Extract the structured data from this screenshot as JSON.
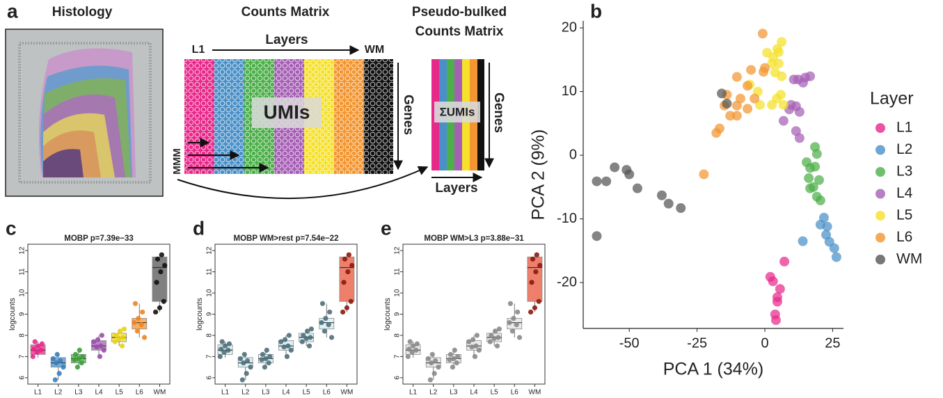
{
  "diagram": {
    "panel_label": "a",
    "histology_title": "Histology",
    "counts_title": "Counts Matrix",
    "layers_top": "Layers",
    "first_layer": "L1",
    "last_layer": "WM",
    "umis": "UMIs",
    "genes_left": "Genes",
    "barcodes": "MMM",
    "pseudo_title_1": "Pseudo-bulked",
    "pseudo_title_2": "Counts Matrix",
    "sum_umis": "ΣUMIs",
    "genes_right": "Genes",
    "layers_bottom": "Layers"
  },
  "chart_data": [
    {
      "type": "scatter",
      "panel_label": "b",
      "xlabel": "PCA 1 (34%)",
      "ylabel": "PCA 2 (9%)",
      "legend_title": "Layer",
      "legend": "right",
      "xlim": [
        -67,
        29
      ],
      "ylim": [
        -27.2,
        21.1
      ],
      "xticks": [
        -50,
        -25,
        0,
        25
      ],
      "yticks": [
        -20,
        -10,
        0,
        10,
        20
      ],
      "series": [
        {
          "name": "L1",
          "color": "#e7298a",
          "x": [
            2,
            3,
            5.6,
            4.6,
            7.2,
            3.8,
            4.1,
            4.6
          ],
          "values": [
            -19.1,
            -19.8,
            -21,
            -22.3,
            -16.7,
            -25,
            -25.9,
            -23
          ]
        },
        {
          "name": "L2",
          "color": "#4a90c8",
          "x": [
            20.5,
            21.8,
            23,
            22.6,
            23.8,
            25.6,
            26.4,
            14
          ],
          "values": [
            -10.9,
            -9.8,
            -11.2,
            -12.5,
            -13.6,
            -14.6,
            -16,
            -13.5
          ]
        },
        {
          "name": "L3",
          "color": "#4daf4a",
          "x": [
            18.5,
            19.2,
            15.4,
            16.7,
            18.5,
            16.2,
            20,
            17.9,
            16.7,
            19.2,
            20.5
          ],
          "values": [
            1.3,
            0.2,
            -1.1,
            -2,
            -1.8,
            -3.6,
            -3.9,
            -5,
            -5.2,
            -6.5,
            -7.1
          ]
        },
        {
          "name": "L4",
          "color": "#a65fb5",
          "x": [
            10.7,
            12.3,
            14.9,
            16.7,
            14.1,
            9,
            11.5,
            12.8,
            6.9,
            11.5,
            12.8,
            9.7
          ],
          "values": [
            11.9,
            11.9,
            12.2,
            12.4,
            11.4,
            7.2,
            7.7,
            6.8,
            5.4,
            3.8,
            2.7,
            7.9
          ]
        },
        {
          "name": "L5",
          "color": "#f5e12a",
          "x": [
            0.8,
            3.1,
            4.6,
            6.2,
            5.1,
            2.6,
            5.1,
            3.8,
            6.2,
            -1.8,
            2.6,
            4.4,
            5.9,
            6.9,
            -5.6,
            -2.6
          ],
          "values": [
            16.1,
            15.4,
            16.7,
            17.8,
            16.2,
            14.4,
            14.4,
            13,
            12.4,
            7.9,
            7.9,
            8.9,
            9.5,
            7.9,
            11.1,
            10
          ]
        },
        {
          "name": "L6",
          "color": "#f39530",
          "x": [
            -0.8,
            0,
            -5.1,
            -10.3,
            -0.5,
            -6.4,
            -3.8,
            -10.3,
            -12.8,
            -6.4,
            -9,
            -10.3,
            -14,
            -14.9,
            -16.7,
            -17.9,
            -22.5
          ],
          "values": [
            19.1,
            13.7,
            13.4,
            12.3,
            13.1,
            10.9,
            8.9,
            6.2,
            6.2,
            7.3,
            8.9,
            7.8,
            9.5,
            7.8,
            4.2,
            3.5,
            -3
          ]
        },
        {
          "name": "WM",
          "color": "#555555",
          "x": [
            -62,
            -62,
            -58.5,
            -55.4,
            -51,
            -50,
            -47,
            -38,
            -35.5,
            -31,
            -15.9,
            -14
          ],
          "values": [
            -12.7,
            -4.1,
            -4.1,
            -1.9,
            -2.3,
            -3,
            -5.2,
            -6.3,
            -7.6,
            -8.3,
            9.7,
            8.1
          ]
        }
      ]
    },
    {
      "type": "box",
      "panel_label": "c",
      "title": "MOBP p=7.39e−33",
      "ylabel": "logcounts",
      "ylim": [
        5.7,
        12.3
      ],
      "yticks": [
        6,
        7,
        8,
        9,
        10,
        11,
        12
      ],
      "categories": [
        "L1",
        "L2",
        "L3",
        "L4",
        "L5",
        "L6",
        "WM"
      ],
      "box_colors": [
        "#e7298a",
        "#4a90c8",
        "#4daf4a",
        "#a65fb5",
        "#f5e12a",
        "#f39530",
        "#555555"
      ],
      "point_colors": [
        "#e7298a",
        "#3a80bb",
        "#3f9e3c",
        "#9a50aa",
        "#e8d21a",
        "#ee8420",
        "#111111"
      ],
      "boxes": [
        {
          "low": 6.95,
          "q1": 7.1,
          "median": 7.3,
          "q3": 7.55,
          "high": 7.7
        },
        {
          "low": 5.9,
          "q1": 6.5,
          "median": 6.7,
          "q3": 6.95,
          "high": 7.1
        },
        {
          "low": 6.5,
          "q1": 6.7,
          "median": 6.9,
          "q3": 7.1,
          "high": 7.3
        },
        {
          "low": 7.0,
          "q1": 7.3,
          "median": 7.5,
          "q3": 7.75,
          "high": 8.0
        },
        {
          "low": 7.5,
          "q1": 7.7,
          "median": 7.9,
          "q3": 8.1,
          "high": 8.3
        },
        {
          "low": 7.9,
          "q1": 8.3,
          "median": 8.6,
          "q3": 8.8,
          "high": 9.5
        },
        {
          "low": 9.1,
          "q1": 9.6,
          "median": 11.2,
          "q3": 11.7,
          "high": 11.8
        }
      ],
      "points": [
        [
          7.0,
          7.2,
          7.3,
          7.35,
          7.5,
          7.6,
          7.7
        ],
        [
          5.9,
          6.2,
          6.5,
          6.7,
          6.8,
          6.9,
          7.1
        ],
        [
          6.5,
          6.7,
          6.85,
          6.9,
          7.0,
          7.1,
          7.3
        ],
        [
          7.0,
          7.3,
          7.45,
          7.5,
          7.7,
          7.8,
          8.0
        ],
        [
          7.5,
          7.7,
          7.85,
          7.9,
          8.0,
          8.2,
          8.3
        ],
        [
          7.9,
          8.2,
          8.5,
          8.6,
          8.8,
          9.1,
          9.5
        ],
        [
          9.1,
          9.3,
          9.6,
          10.5,
          11.0,
          11.3,
          11.6,
          11.8
        ]
      ]
    },
    {
      "type": "box",
      "panel_label": "d",
      "title": "MOBP WM>rest p=7.54e−22",
      "ylabel": "logcounts",
      "ylim": [
        5.7,
        12.3
      ],
      "yticks": [
        6,
        7,
        8,
        9,
        10,
        11,
        12
      ],
      "categories": [
        "L1",
        "L2",
        "L3",
        "L4",
        "L5",
        "L6",
        "WM"
      ],
      "box_colors": [
        "#d3eef2",
        "#d3eef2",
        "#d3eef2",
        "#d3eef2",
        "#d3eef2",
        "#d3eef2",
        "#e8553a"
      ],
      "point_colors": [
        "#4f6f7b",
        "#4f6f7b",
        "#4f6f7b",
        "#4f6f7b",
        "#4f6f7b",
        "#4f6f7b",
        "#8b1a10"
      ],
      "boxes": [
        {
          "low": 6.95,
          "q1": 7.1,
          "median": 7.3,
          "q3": 7.55,
          "high": 7.7
        },
        {
          "low": 5.9,
          "q1": 6.5,
          "median": 6.7,
          "q3": 6.95,
          "high": 7.1
        },
        {
          "low": 6.5,
          "q1": 6.7,
          "median": 6.9,
          "q3": 7.1,
          "high": 7.3
        },
        {
          "low": 7.0,
          "q1": 7.3,
          "median": 7.5,
          "q3": 7.75,
          "high": 8.0
        },
        {
          "low": 7.5,
          "q1": 7.7,
          "median": 7.9,
          "q3": 8.1,
          "high": 8.3
        },
        {
          "low": 7.9,
          "q1": 8.3,
          "median": 8.6,
          "q3": 8.8,
          "high": 9.5
        },
        {
          "low": 9.1,
          "q1": 9.6,
          "median": 11.2,
          "q3": 11.7,
          "high": 11.8
        }
      ],
      "points": [
        [
          7.0,
          7.2,
          7.3,
          7.35,
          7.5,
          7.6,
          7.7
        ],
        [
          5.9,
          6.2,
          6.5,
          6.7,
          6.8,
          6.9,
          7.1
        ],
        [
          6.5,
          6.7,
          6.85,
          6.9,
          7.0,
          7.1,
          7.3
        ],
        [
          7.0,
          7.3,
          7.45,
          7.5,
          7.7,
          7.8,
          8.0
        ],
        [
          7.5,
          7.7,
          7.85,
          7.9,
          8.0,
          8.2,
          8.3
        ],
        [
          7.9,
          8.2,
          8.5,
          8.6,
          8.8,
          9.1,
          9.5
        ],
        [
          9.1,
          9.3,
          9.6,
          10.5,
          11.0,
          11.3,
          11.6,
          11.8
        ]
      ]
    },
    {
      "type": "box",
      "panel_label": "e",
      "title": "MOBP WM>L3 p=3.88e−31",
      "ylabel": "logcounts",
      "ylim": [
        5.7,
        12.3
      ],
      "yticks": [
        6,
        7,
        8,
        9,
        10,
        11,
        12
      ],
      "categories": [
        "L1",
        "L2",
        "L3",
        "L4",
        "L5",
        "L6",
        "WM"
      ],
      "box_colors": [
        "#e2e2e2",
        "#e2e2e2",
        "#e2e2e2",
        "#e2e2e2",
        "#e2e2e2",
        "#e2e2e2",
        "#e8553a"
      ],
      "point_colors": [
        "#8a8a8a",
        "#8a8a8a",
        "#8a8a8a",
        "#8a8a8a",
        "#8a8a8a",
        "#8a8a8a",
        "#8b1a10"
      ],
      "boxes": [
        {
          "low": 6.95,
          "q1": 7.1,
          "median": 7.3,
          "q3": 7.55,
          "high": 7.7
        },
        {
          "low": 5.9,
          "q1": 6.5,
          "median": 6.7,
          "q3": 6.95,
          "high": 7.1
        },
        {
          "low": 6.5,
          "q1": 6.7,
          "median": 6.9,
          "q3": 7.1,
          "high": 7.3
        },
        {
          "low": 7.0,
          "q1": 7.3,
          "median": 7.5,
          "q3": 7.75,
          "high": 8.0
        },
        {
          "low": 7.5,
          "q1": 7.7,
          "median": 7.9,
          "q3": 8.1,
          "high": 8.3
        },
        {
          "low": 7.9,
          "q1": 8.3,
          "median": 8.6,
          "q3": 8.8,
          "high": 9.5
        },
        {
          "low": 9.1,
          "q1": 9.6,
          "median": 11.2,
          "q3": 11.7,
          "high": 11.8
        }
      ],
      "points": [
        [
          7.0,
          7.2,
          7.3,
          7.35,
          7.5,
          7.6,
          7.7
        ],
        [
          5.9,
          6.2,
          6.5,
          6.7,
          6.8,
          6.9,
          7.1
        ],
        [
          6.5,
          6.7,
          6.85,
          6.9,
          7.0,
          7.1,
          7.3
        ],
        [
          7.0,
          7.3,
          7.45,
          7.5,
          7.7,
          7.8,
          8.0
        ],
        [
          7.5,
          7.7,
          7.85,
          7.9,
          8.0,
          8.2,
          8.3
        ],
        [
          7.9,
          8.2,
          8.5,
          8.6,
          8.8,
          9.1,
          9.5
        ],
        [
          9.1,
          9.3,
          9.6,
          10.5,
          11.0,
          11.3,
          11.6,
          11.8
        ]
      ]
    }
  ]
}
